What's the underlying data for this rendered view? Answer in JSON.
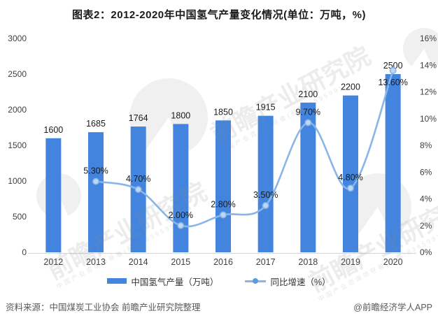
{
  "title": "图表2：2012-2020年中国氢气产量变化情况(单位：万吨，%)",
  "chart_data": {
    "type": "combo",
    "categories": [
      "2012",
      "2013",
      "2014",
      "2015",
      "2016",
      "2017",
      "2018",
      "2019",
      "2020"
    ],
    "series": [
      {
        "name": "中国氢气产量（万吨）",
        "type": "bar",
        "axis": "left",
        "color": "#4385DE",
        "values": [
          1600,
          1685,
          1764,
          1800,
          1850,
          1915,
          2100,
          2200,
          2500
        ],
        "labels": [
          "1600",
          "1685",
          "1764",
          "1800",
          "1850",
          "1915",
          "2100",
          "2200",
          "2500"
        ]
      },
      {
        "name": "同比增速（%）",
        "type": "line",
        "axis": "right",
        "color": "#8AB5E8",
        "values": [
          null,
          5.3,
          4.7,
          2.0,
          2.8,
          3.5,
          9.7,
          4.8,
          13.6
        ],
        "labels": [
          "",
          "5.30%",
          "4.70%",
          "2.00%",
          "2.80%",
          "3.50%",
          "9.70%",
          "4.80%",
          "13.60%"
        ],
        "label_position": [
          "",
          "above",
          "above",
          "above",
          "above",
          "above",
          "above",
          "above",
          "below"
        ]
      }
    ],
    "left_axis": {
      "min": 0,
      "max": 3000,
      "step": 500,
      "ticks": [
        "0",
        "500",
        "1000",
        "1500",
        "2000",
        "2500",
        "3000"
      ]
    },
    "right_axis": {
      "min": 0,
      "max": 16,
      "step": 2,
      "ticks": [
        "0%",
        "2%",
        "4%",
        "6%",
        "8%",
        "10%",
        "12%",
        "14%",
        "16%"
      ]
    },
    "grid": false,
    "legend_position": "bottom"
  },
  "legend": {
    "items": [
      {
        "label": "中国氢气产量（万吨）",
        "type": "bar"
      },
      {
        "label": "同比增速（%）",
        "type": "line"
      }
    ]
  },
  "footer": {
    "source": "资料来源：中国煤炭工业协会 前瞻产业研究院整理",
    "credit": "@前瞻经济学人APP"
  },
  "watermark": {
    "text": "前瞻产业研究院",
    "subtext": "中国产业咨询领导者(股票:839599)"
  },
  "colors": {
    "bar": "#4385DE",
    "line": "#8AB5E8",
    "marker_fill": "#BED7F3",
    "axis_text": "#404040",
    "label_text": "#1a1a1a",
    "footer_text": "#595959",
    "axis_line": "#D8D8D8"
  }
}
